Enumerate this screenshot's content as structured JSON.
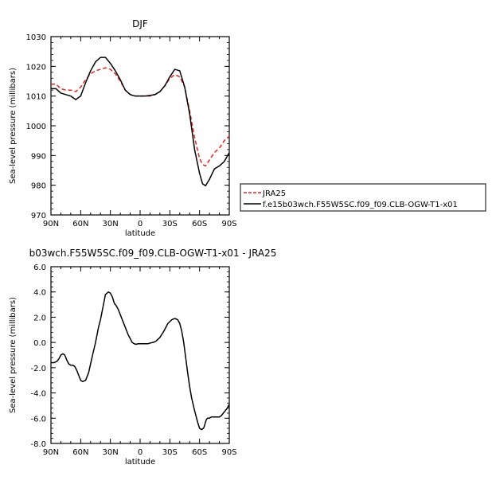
{
  "chart_data": [
    {
      "type": "line",
      "title": "DJF",
      "xlabel": "latitude",
      "ylabel": "Sea-level pressure (millibars)",
      "xlim": [
        90,
        -90
      ],
      "ylim": [
        970,
        1030
      ],
      "xticks": [
        90,
        60,
        30,
        0,
        -30,
        -60,
        -90
      ],
      "xtick_labels": [
        "90N",
        "60N",
        "30N",
        "0",
        "30S",
        "60S",
        "90S"
      ],
      "yticks": [
        970,
        980,
        990,
        1000,
        1010,
        1020,
        1030
      ],
      "ytick_labels": [
        "970",
        "980",
        "990",
        "1000",
        "1010",
        "1020",
        "1030"
      ],
      "grid": false,
      "legend_position": "right",
      "series": [
        {
          "name": "JRA25",
          "color": "#e8231f",
          "dash": "dashed",
          "x": [
            90,
            85,
            80,
            75,
            70,
            65,
            60,
            55,
            50,
            45,
            40,
            35,
            30,
            25,
            20,
            15,
            10,
            5,
            0,
            -5,
            -10,
            -15,
            -20,
            -25,
            -30,
            -35,
            -40,
            -45,
            -50,
            -55,
            -60,
            -63,
            -66,
            -70,
            -75,
            -80,
            -85,
            -90
          ],
          "y": [
            1014,
            1014,
            1012.5,
            1012,
            1012,
            1011.5,
            1013,
            1015.5,
            1017.5,
            1018.5,
            1019,
            1019.5,
            1019,
            1017.5,
            1015,
            1012,
            1010.5,
            1010,
            1010,
            1010,
            1010,
            1010.5,
            1011.5,
            1013.5,
            1016,
            1017.2,
            1016.5,
            1013,
            1005,
            996,
            989,
            987,
            986.5,
            988.5,
            991,
            992.5,
            995,
            996.5
          ]
        },
        {
          "name": "f.e15b03wch.F55W5SC.f09_f09.CLB-OGW-T1-x01",
          "color": "#000000",
          "dash": "solid",
          "x": [
            90,
            85,
            80,
            75,
            70,
            65,
            60,
            55,
            50,
            45,
            40,
            35,
            30,
            25,
            20,
            15,
            10,
            5,
            0,
            -5,
            -10,
            -15,
            -20,
            -25,
            -30,
            -35,
            -40,
            -45,
            -50,
            -55,
            -60,
            -63,
            -66,
            -70,
            -75,
            -80,
            -85,
            -90
          ],
          "y": [
            1012.5,
            1012.5,
            1011,
            1010.5,
            1010,
            1008.8,
            1010,
            1014.5,
            1018.5,
            1021.5,
            1023,
            1023,
            1021,
            1018.5,
            1015.5,
            1012,
            1010.5,
            1010,
            1010,
            1010,
            1010.2,
            1010.5,
            1011.5,
            1013.5,
            1016.5,
            1019,
            1018.5,
            1013,
            1004,
            992,
            984,
            980.5,
            979.8,
            982,
            985.5,
            986.5,
            988,
            991
          ]
        }
      ],
      "legend": [
        "JRA25",
        "f.e15b03wch.F55W5SC.f09_f09.CLB-OGW-T1-x01"
      ]
    },
    {
      "type": "line",
      "title": "b03wch.F55W5SC.f09_f09.CLB-OGW-T1-x01 - JRA25",
      "xlabel": "latitude",
      "ylabel": "Sea-level pressure (millibars)",
      "xlim": [
        90,
        -90
      ],
      "ylim": [
        -8,
        6
      ],
      "xticks": [
        90,
        60,
        30,
        0,
        -30,
        -60,
        -90
      ],
      "xtick_labels": [
        "90N",
        "60N",
        "30N",
        "0",
        "30S",
        "60S",
        "90S"
      ],
      "yticks": [
        -8,
        -6,
        -4,
        -2,
        0,
        2,
        4,
        6
      ],
      "ytick_labels": [
        "-8.0",
        "-6.0",
        "-4.0",
        "-2.0",
        "0.0",
        "2.0",
        "4.0",
        "6.0"
      ],
      "grid": false,
      "series": [
        {
          "color": "#000000",
          "dash": "solid",
          "x": [
            90,
            87,
            84,
            82,
            80,
            78,
            76,
            74,
            72,
            70,
            68,
            66,
            64,
            62,
            60,
            58,
            55,
            52,
            50,
            48,
            45,
            42,
            40,
            38,
            35,
            32,
            30,
            28,
            26,
            24,
            22,
            20,
            18,
            16,
            14,
            12,
            10,
            8,
            6,
            4,
            2,
            0,
            -2,
            -5,
            -8,
            -10,
            -13,
            -16,
            -20,
            -24,
            -28,
            -32,
            -35,
            -38,
            -40,
            -42,
            -44,
            -46,
            -48,
            -50,
            -52,
            -55,
            -58,
            -60,
            -62,
            -64,
            -65,
            -66,
            -67,
            -68,
            -70,
            -72,
            -74,
            -76,
            -78,
            -80,
            -82,
            -84,
            -86,
            -88,
            -90
          ],
          "y": [
            -1.6,
            -1.6,
            -1.5,
            -1.3,
            -1.0,
            -0.9,
            -1.0,
            -1.4,
            -1.7,
            -1.8,
            -1.8,
            -1.9,
            -2.2,
            -2.6,
            -3.0,
            -3.1,
            -3.0,
            -2.4,
            -1.7,
            -1.0,
            0.0,
            1.2,
            1.8,
            2.6,
            3.8,
            4.0,
            3.9,
            3.6,
            3.1,
            2.9,
            2.6,
            2.2,
            1.8,
            1.4,
            1.0,
            0.6,
            0.3,
            0.0,
            -0.1,
            -0.15,
            -0.1,
            -0.1,
            -0.1,
            -0.1,
            -0.1,
            -0.05,
            0.0,
            0.1,
            0.4,
            0.9,
            1.5,
            1.8,
            1.9,
            1.8,
            1.5,
            0.9,
            0.0,
            -1.2,
            -2.4,
            -3.5,
            -4.4,
            -5.4,
            -6.3,
            -6.8,
            -6.9,
            -6.8,
            -6.6,
            -6.3,
            -6.1,
            -6.0,
            -6.0,
            -5.9,
            -5.9,
            -5.9,
            -5.9,
            -5.9,
            -5.8,
            -5.6,
            -5.4,
            -5.2,
            -4.9
          ]
        }
      ]
    }
  ]
}
